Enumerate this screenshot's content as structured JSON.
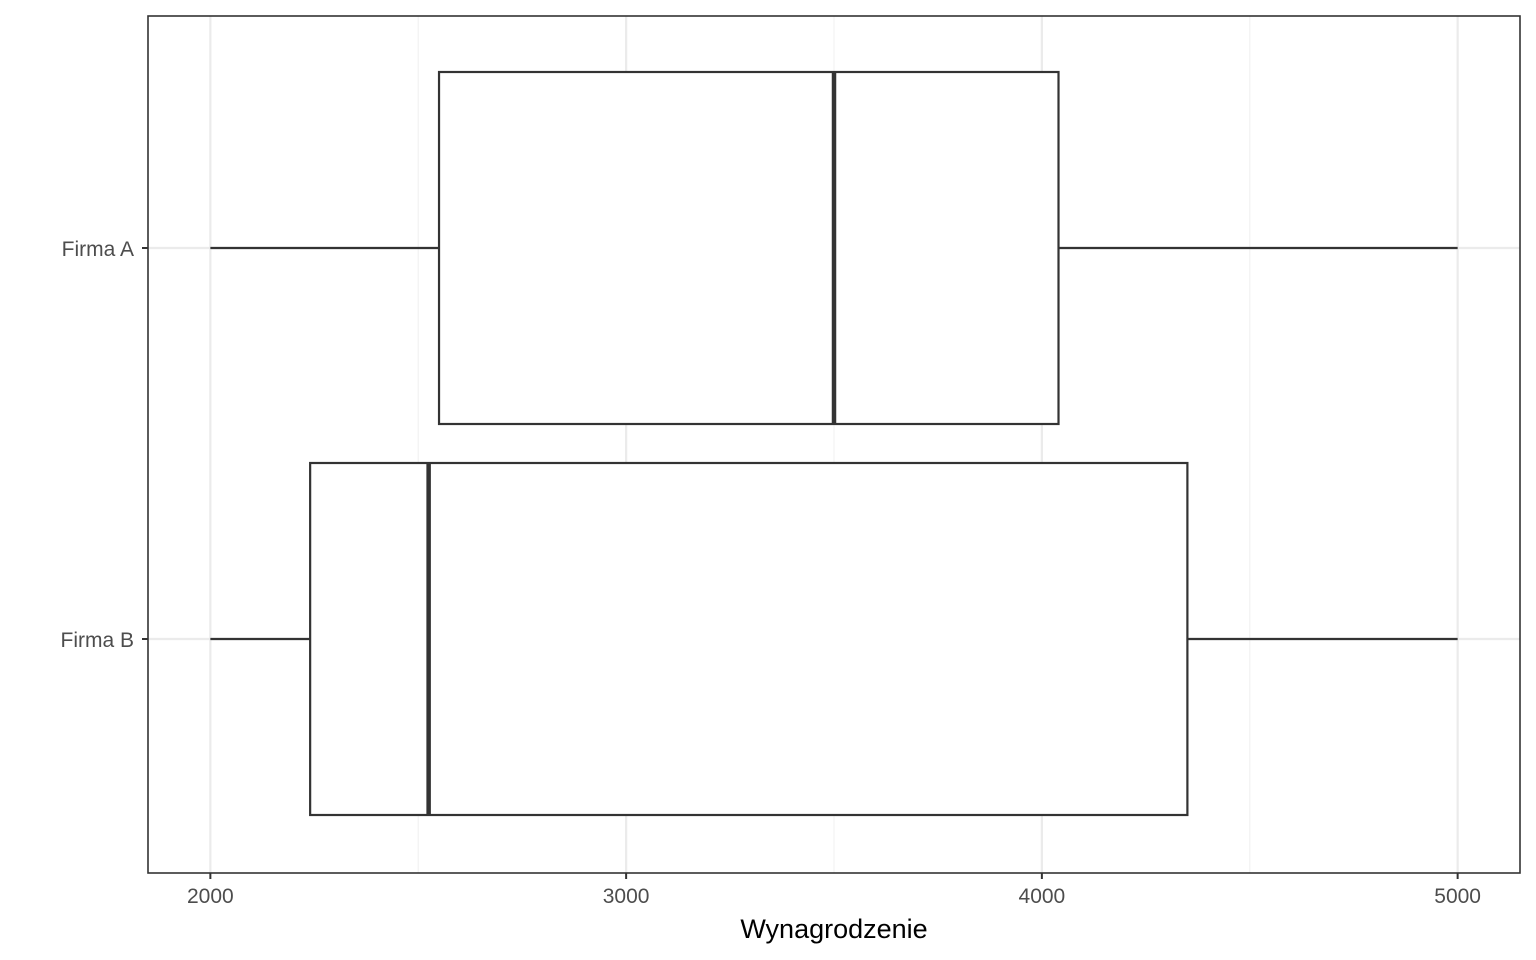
{
  "chart_data": {
    "type": "boxplot",
    "orientation": "horizontal",
    "title": "",
    "xlabel": "Wynagrodzenie",
    "ylabel": "",
    "xlim": [
      1850,
      5150
    ],
    "x_ticks": [
      2000,
      3000,
      4000,
      5000
    ],
    "x_tick_labels": [
      "2000",
      "3000",
      "4000",
      "5000"
    ],
    "x_minor_ticks": [
      2500,
      3500,
      4500
    ],
    "grid": true,
    "legend": "none",
    "categories": [
      "Firma A",
      "Firma B"
    ],
    "boxes": [
      {
        "category": "Firma A",
        "min": 2000,
        "q1": 2550,
        "median": 3500,
        "q3": 4040,
        "max": 5000
      },
      {
        "category": "Firma B",
        "min": 2000,
        "q1": 2240,
        "median": 2525,
        "q3": 4350,
        "max": 5000
      }
    ],
    "colors": {
      "box_fill": "#ffffff",
      "box_stroke": "#333333",
      "grid_major": "#ebebeb",
      "grid_minor": "#f2f2f2",
      "panel_border": "#333333",
      "tick_text": "#4d4d4d"
    }
  }
}
